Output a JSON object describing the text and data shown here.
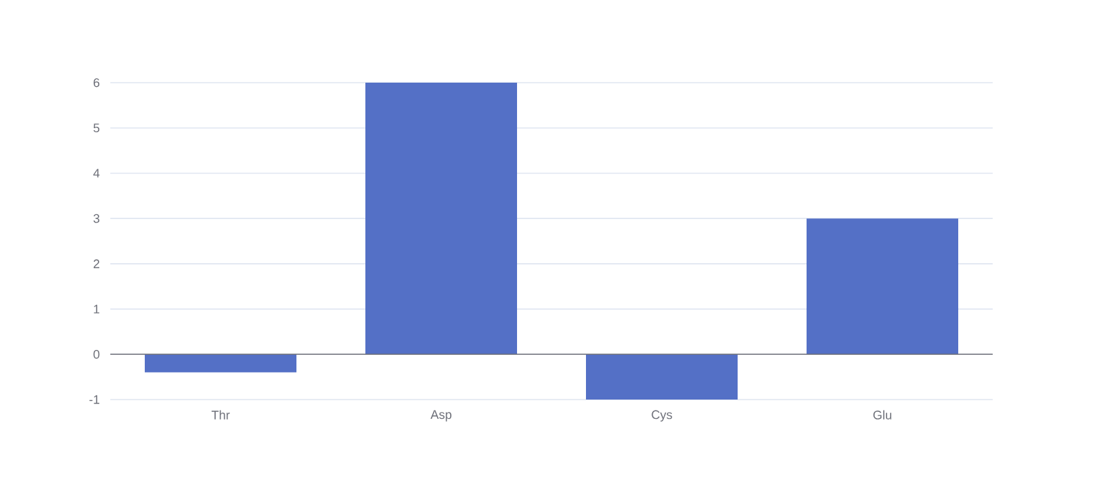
{
  "chart_data": {
    "type": "bar",
    "categories": [
      "Thr",
      "Asp",
      "Cys",
      "Glu"
    ],
    "values": [
      -0.4,
      6,
      -1,
      3
    ],
    "color": "#5470c6",
    "ylim": [
      -1,
      6
    ],
    "yticks": [
      -1,
      0,
      1,
      2,
      3,
      4,
      5,
      6
    ],
    "grid": "y"
  }
}
